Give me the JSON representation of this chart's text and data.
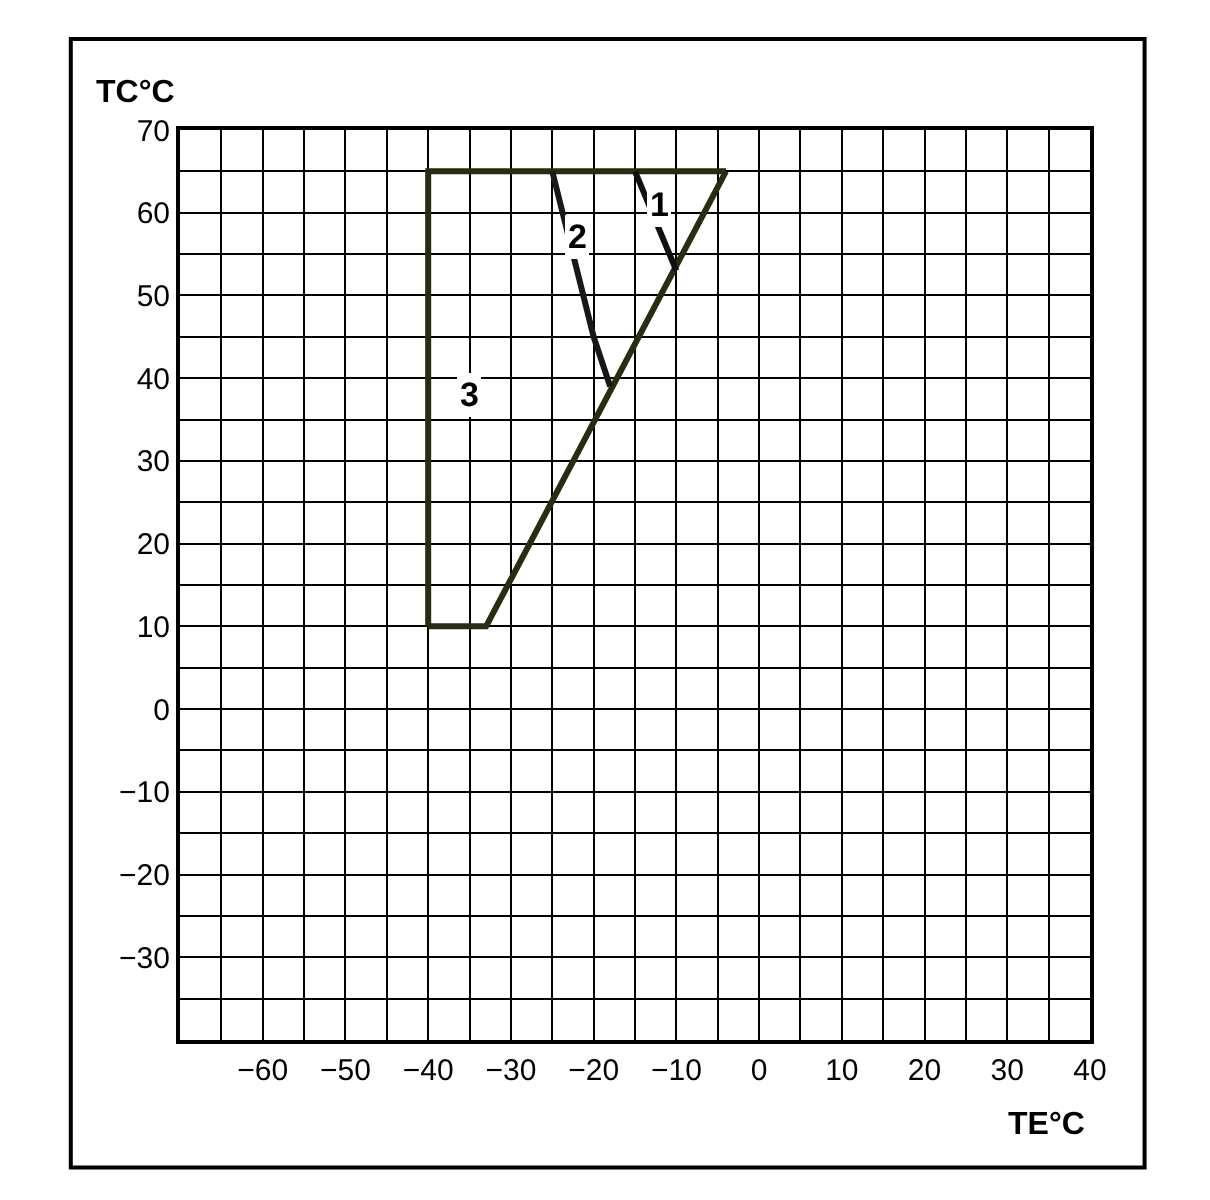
{
  "chart_data": {
    "type": "line",
    "xlabel": "TE°C",
    "ylabel": "TC°C",
    "xlim": [
      -70,
      40
    ],
    "ylim": [
      -40,
      70
    ],
    "xticks": [
      {
        "value": -70,
        "label": null
      },
      {
        "value": -65,
        "label": null
      },
      -60,
      {
        "value": -55,
        "label": null
      },
      -50,
      {
        "value": -45,
        "label": null
      },
      -40,
      {
        "value": -35,
        "label": null
      },
      -30,
      {
        "value": -25,
        "label": null
      },
      -20,
      {
        "value": -15,
        "label": null
      },
      -10,
      {
        "value": -5,
        "label": null
      },
      0,
      {
        "value": 5,
        "label": null
      },
      10,
      {
        "value": 15,
        "label": null
      },
      20,
      {
        "value": 25,
        "label": null
      },
      30,
      {
        "value": 35,
        "label": null
      },
      40
    ],
    "yticks": [
      {
        "value": -40,
        "label": null
      },
      {
        "value": -35,
        "label": null
      },
      -30,
      {
        "value": -25,
        "label": null
      },
      -20,
      {
        "value": -15,
        "label": null
      },
      -10,
      {
        "value": -5,
        "label": null
      },
      0,
      {
        "value": 5,
        "label": null
      },
      10,
      {
        "value": 15,
        "label": null
      },
      20,
      {
        "value": 25,
        "label": null
      },
      30,
      {
        "value": 35,
        "label": null
      },
      40,
      {
        "value": 45,
        "label": null
      },
      50,
      {
        "value": 55,
        "label": null
      },
      60,
      {
        "value": 65,
        "label": null
      },
      70
    ],
    "grid": true,
    "marker": "none",
    "line_style": "solid",
    "series": [
      {
        "color": "#2b2b12",
        "x": [
          -40,
          -33,
          -4
        ],
        "values": [
          10,
          10,
          65
        ]
      },
      {
        "color": "#2b2b12",
        "x": [
          -40,
          -40,
          -4
        ],
        "values": [
          10,
          65,
          65
        ]
      },
      {
        "color": "#181818",
        "x": [
          -25,
          -20,
          -18
        ],
        "values": [
          65,
          45,
          39
        ]
      },
      {
        "color": "#101010",
        "x": [
          -15,
          -10
        ],
        "values": [
          65,
          53
        ]
      }
    ],
    "annotations": [
      {
        "text": "1",
        "x": -12,
        "y": 61
      },
      {
        "text": "2",
        "x": -22,
        "y": 57
      },
      {
        "text": "3",
        "x": -35,
        "y": 38
      }
    ]
  }
}
